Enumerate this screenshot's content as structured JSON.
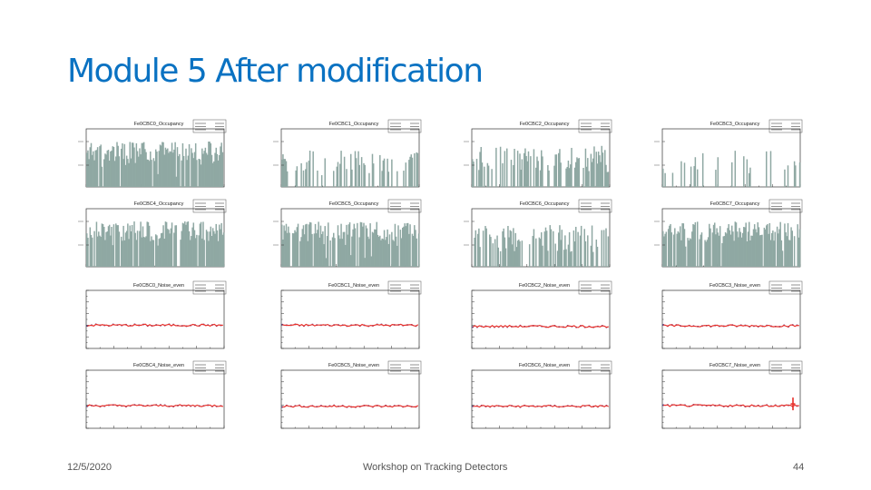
{
  "slide": {
    "title": "Module 5 After modification",
    "date": "12/5/2020",
    "event": "Workshop on Tracking Detectors",
    "page": "44"
  },
  "colors": {
    "title": "#0a72c2",
    "occupancy_fill": "#8fa8a3",
    "noise_line": "#e8302a",
    "noise_marker": "#3a2f8c"
  },
  "chart_data": [
    {
      "type": "bar",
      "title": "Fe0CBC0_Occupancy",
      "xlim": [
        0,
        260
      ],
      "log_y": true,
      "profile": "dense"
    },
    {
      "type": "bar",
      "title": "Fe0CBC1_Occupancy",
      "xlim": [
        0,
        260
      ],
      "log_y": true,
      "profile": "sparse"
    },
    {
      "type": "bar",
      "title": "Fe0CBC2_Occupancy",
      "xlim": [
        0,
        260
      ],
      "log_y": true,
      "profile": "medium"
    },
    {
      "type": "bar",
      "title": "Fe0CBC3_Occupancy",
      "xlim": [
        0,
        260
      ],
      "log_y": true,
      "profile": "verysparse"
    },
    {
      "type": "bar",
      "title": "Fe0CBC4_Occupancy",
      "xlim": [
        0,
        260
      ],
      "log_y": true,
      "profile": "dense"
    },
    {
      "type": "bar",
      "title": "Fe0CBC5_Occupancy",
      "xlim": [
        0,
        260
      ],
      "log_y": true,
      "profile": "dense"
    },
    {
      "type": "bar",
      "title": "Fe0CBC6_Occupancy",
      "xlim": [
        0,
        260
      ],
      "log_y": true,
      "profile": "medium"
    },
    {
      "type": "bar",
      "title": "Fe0CBC7_Occupancy",
      "xlim": [
        0,
        260
      ],
      "log_y": true,
      "profile": "dense"
    },
    {
      "type": "line",
      "title": "Fe0CBC0_Noise_even",
      "xlim": [
        0,
        130
      ],
      "ylim": [
        0,
        10
      ],
      "level": 4
    },
    {
      "type": "line",
      "title": "Fe0CBC1_Noise_even",
      "xlim": [
        0,
        130
      ],
      "ylim": [
        0,
        10
      ],
      "level": 4
    },
    {
      "type": "line",
      "title": "Fe0CBC2_Noise_even",
      "xlim": [
        0,
        130
      ],
      "ylim": [
        0,
        10
      ],
      "level": 3.8
    },
    {
      "type": "line",
      "title": "Fe0CBC3_Noise_even",
      "xlim": [
        0,
        130
      ],
      "ylim": [
        0,
        10
      ],
      "level": 3.9
    },
    {
      "type": "line",
      "title": "Fe0CBC4_Noise_even",
      "xlim": [
        0,
        130
      ],
      "ylim": [
        0,
        10
      ],
      "level": 3.9
    },
    {
      "type": "line",
      "title": "Fe0CBC5_Noise_even",
      "xlim": [
        0,
        130
      ],
      "ylim": [
        0,
        10
      ],
      "level": 3.8
    },
    {
      "type": "line",
      "title": "Fe0CBC6_Noise_even",
      "xlim": [
        0,
        130
      ],
      "ylim": [
        0,
        10
      ],
      "level": 3.8
    },
    {
      "type": "line",
      "title": "Fe0CBC7_Noise_even",
      "xlim": [
        0,
        130
      ],
      "ylim": [
        0,
        10
      ],
      "level": 3.9,
      "outlier": 4.2
    }
  ]
}
